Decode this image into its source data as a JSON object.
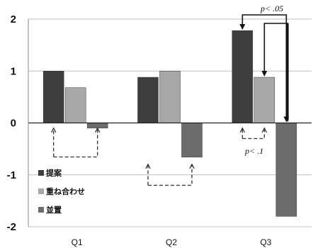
{
  "chart_data": {
    "type": "bar",
    "categories": [
      "Q1",
      "Q2",
      "Q3"
    ],
    "series": [
      {
        "name": "提案",
        "values": [
          1.0,
          0.88,
          1.78
        ],
        "color": "#3e3e3e"
      },
      {
        "name": "重ね合わせ",
        "values": [
          0.68,
          1.0,
          0.88
        ],
        "color": "#a8a8a8"
      },
      {
        "name": "並置",
        "values": [
          -0.1,
          -0.66,
          -1.8
        ],
        "color": "#6c6c6c"
      }
    ],
    "ylim": [
      -2,
      2
    ],
    "yticks": [
      -2,
      -1,
      0,
      1,
      2
    ],
    "grid": true,
    "legend_position": "lower-left",
    "annotations": {
      "sig_p05": "p< .05",
      "sig_p1": "p< .1"
    }
  }
}
